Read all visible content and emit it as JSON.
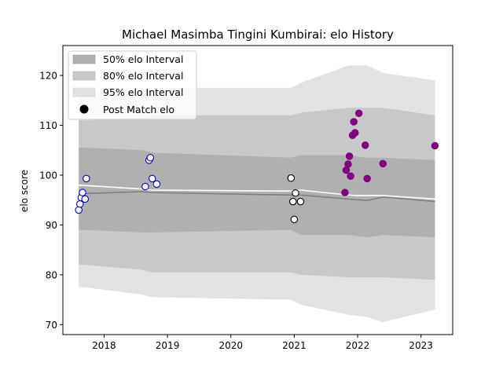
{
  "chart_data": {
    "type": "scatter",
    "title": "Michael Masimba Tingini Kumbirai: elo History",
    "xlabel": "",
    "ylabel": "elo score",
    "xlim": [
      2017.35,
      2023.5
    ],
    "ylim": [
      68,
      126
    ],
    "x_ticks": [
      2018,
      2019,
      2020,
      2021,
      2022,
      2023
    ],
    "x_tick_labels": [
      "2018",
      "2019",
      "2020",
      "2021",
      "2022",
      "2023"
    ],
    "y_ticks": [
      70,
      80,
      90,
      100,
      110,
      120
    ],
    "y_tick_labels": [
      "70",
      "80",
      "90",
      "100",
      "110",
      "120"
    ],
    "grid": false,
    "legend": {
      "position": "top-left",
      "entries": [
        "50% elo Interval",
        "80% elo Interval",
        "95% elo Interval",
        "Post Match elo"
      ]
    },
    "colors": {
      "band95": "#e2e2e2",
      "band80": "#c8c8c8",
      "band50": "#b0b0b0",
      "mean_line": "#808080",
      "post_line": "#ffffff",
      "blue_edge": "#0000cc",
      "black_edge": "#000000",
      "purple": "#800080"
    },
    "bands": {
      "x": [
        2017.6,
        2017.7,
        2018.6,
        2018.75,
        2020.95,
        2021.1,
        2021.85,
        2022.15,
        2022.4,
        2023.22
      ],
      "mean": [
        96.3,
        96.3,
        96.7,
        96.5,
        96.0,
        96.0,
        95.2,
        94.9,
        95.6,
        94.7
      ],
      "p50_low": [
        89.0,
        89.0,
        88.5,
        88.5,
        89.0,
        88.0,
        88.0,
        87.5,
        88.0,
        87.5
      ],
      "p50_high": [
        105.5,
        105.5,
        105.0,
        104.5,
        103.5,
        104.0,
        104.0,
        103.5,
        103.5,
        103.0
      ],
      "p80_low": [
        82.0,
        82.0,
        81.0,
        80.5,
        80.5,
        80.0,
        79.5,
        79.5,
        79.5,
        79.0
      ],
      "p80_high": [
        111.0,
        111.0,
        111.5,
        112.0,
        112.0,
        112.5,
        113.5,
        113.5,
        113.5,
        112.0
      ],
      "p95_low": [
        77.5,
        77.5,
        76.0,
        75.5,
        75.0,
        74.0,
        72.0,
        71.5,
        70.5,
        73.0
      ],
      "p95_high": [
        116.5,
        116.5,
        117.0,
        117.5,
        117.5,
        118.5,
        122.0,
        122.0,
        120.5,
        119.0
      ]
    },
    "post_match_line": {
      "x": [
        2017.6,
        2018.6,
        2018.75,
        2020.95,
        2021.1,
        2021.85,
        2022.0,
        2022.4,
        2023.22
      ],
      "y": [
        98.0,
        97.2,
        97.0,
        96.8,
        97.0,
        96.0,
        95.9,
        95.9,
        95.2
      ]
    },
    "series": [
      {
        "style": "blue-hollow",
        "x": [
          2017.6,
          2017.62,
          2017.64,
          2017.66,
          2017.7,
          2017.72,
          2018.65,
          2018.71,
          2018.73,
          2018.76,
          2018.83
        ],
        "y": [
          93.0,
          94.2,
          95.5,
          96.5,
          95.2,
          99.3,
          97.7,
          103.0,
          103.5,
          99.3,
          98.2
        ]
      },
      {
        "style": "black-hollow",
        "x": [
          2020.95,
          2020.98,
          2021.0,
          2021.02,
          2021.1
        ],
        "y": [
          99.4,
          94.7,
          91.1,
          96.4,
          94.7
        ]
      },
      {
        "style": "purple-filled",
        "x": [
          2021.8,
          2021.82,
          2021.85,
          2021.87,
          2021.89,
          2021.92,
          2021.94,
          2021.96,
          2022.02,
          2022.12,
          2022.15,
          2022.4,
          2023.22
        ],
        "y": [
          96.5,
          101.0,
          102.2,
          103.8,
          99.8,
          108.0,
          110.7,
          108.5,
          112.4,
          106.0,
          99.3,
          102.3,
          105.9
        ]
      }
    ]
  }
}
